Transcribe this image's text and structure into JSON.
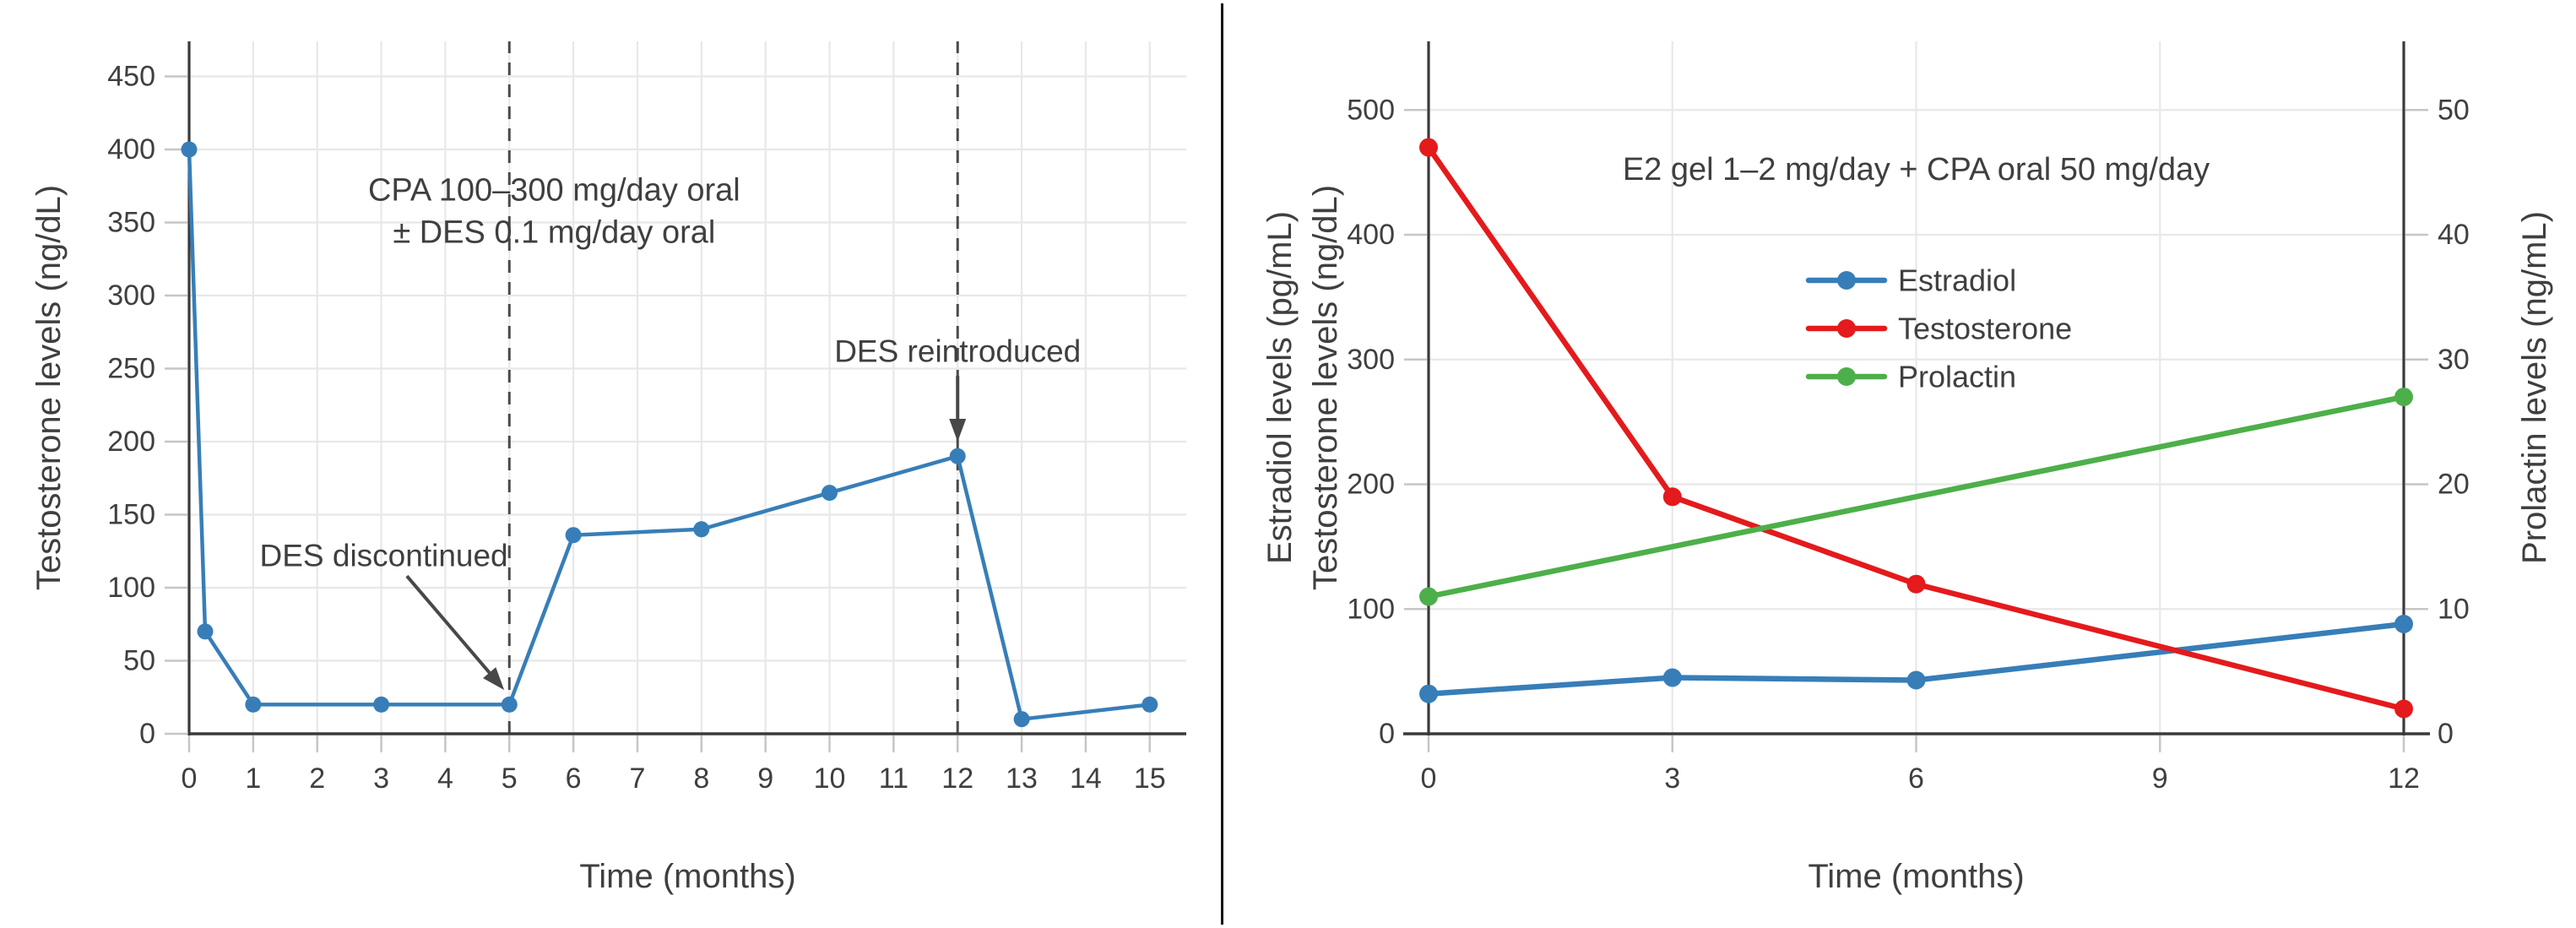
{
  "figure": {
    "background": "#ffffff",
    "divider_color": "#141414",
    "text_color": "#3f3f3f",
    "axis_color": "#3a3a3a",
    "grid_color": "#e8e8e8",
    "tick_color": "#c6c6c6",
    "annotation_color": "#484848",
    "dashed_line_color": "#4a4a4a"
  },
  "chart_data": [
    {
      "id": "cpa-des-testosterone",
      "type": "line",
      "title_lines": [
        "CPA 100–300 mg/day oral",
        "± DES 0.1 mg/day oral"
      ],
      "title_pos": [
        5.7,
        372
      ],
      "xlabel": "Time (months)",
      "ylabel": "Testosterone levels (ng/dL)",
      "xlim": [
        0,
        15.57
      ],
      "ylim": [
        0,
        474
      ],
      "xticks": [
        0,
        1,
        2,
        3,
        4,
        5,
        6,
        7,
        8,
        9,
        10,
        11,
        12,
        13,
        14,
        15
      ],
      "yticks": [
        0,
        50,
        100,
        150,
        200,
        250,
        300,
        350,
        400,
        450
      ],
      "grid": true,
      "series": [
        {
          "name": "Testosterone",
          "color": "#377eb8",
          "axis": "left",
          "x": [
            0,
            0.25,
            1,
            3,
            5,
            6,
            8,
            10,
            12,
            13,
            15
          ],
          "y": [
            400,
            70,
            20,
            20,
            20,
            136,
            140,
            165,
            190,
            10,
            20
          ]
        }
      ],
      "vlines": [
        {
          "x": 5,
          "label": "DES discontinued"
        },
        {
          "x": 12,
          "label": "DES reintroduced"
        }
      ],
      "annotations": [
        {
          "text": "DES discontinued",
          "pos": [
            3.04,
            122
          ],
          "arrow_from": [
            3.4,
            108
          ],
          "arrow_to": [
            4.92,
            30
          ]
        },
        {
          "text": "DES reintroduced",
          "pos": [
            12,
            262
          ],
          "arrow_from": [
            12,
            245
          ],
          "arrow_to": [
            12,
            200
          ]
        }
      ]
    },
    {
      "id": "e2-gel-cpa-combination",
      "type": "line",
      "title": "E2 gel 1–2 mg/day + CPA oral 50 mg/day",
      "title_pos": [
        6.0,
        452
      ],
      "xlabel": "Time (months)",
      "ylabels_left": [
        "Estradiol levels (pg/mL)",
        "Testosterone levels (ng/dL)"
      ],
      "ylabel_right": "Prolactin levels (ng/mL)",
      "xlim": [
        0,
        12
      ],
      "ylim_left": [
        0,
        555
      ],
      "ylim_right": [
        0,
        55.5
      ],
      "xticks": [
        0,
        3,
        6,
        9,
        12
      ],
      "yticks_left": [
        0,
        100,
        200,
        300,
        400,
        500
      ],
      "yticks_right": [
        0,
        10,
        20,
        30,
        40,
        50
      ],
      "grid": true,
      "series": [
        {
          "name": "Estradiol",
          "color": "#377eb8",
          "axis": "left",
          "x": [
            0,
            3,
            6,
            12
          ],
          "y": [
            32,
            45,
            43,
            88
          ]
        },
        {
          "name": "Testosterone",
          "color": "#e41a1c",
          "axis": "left",
          "x": [
            0,
            3,
            6,
            12
          ],
          "y": [
            470,
            190,
            120,
            20
          ]
        },
        {
          "name": "Prolactin",
          "color": "#4daf4a",
          "axis": "right",
          "x": [
            0,
            12
          ],
          "y": [
            11,
            27
          ]
        }
      ],
      "legend": [
        "Estradiol",
        "Testosterone",
        "Prolactin"
      ]
    }
  ]
}
